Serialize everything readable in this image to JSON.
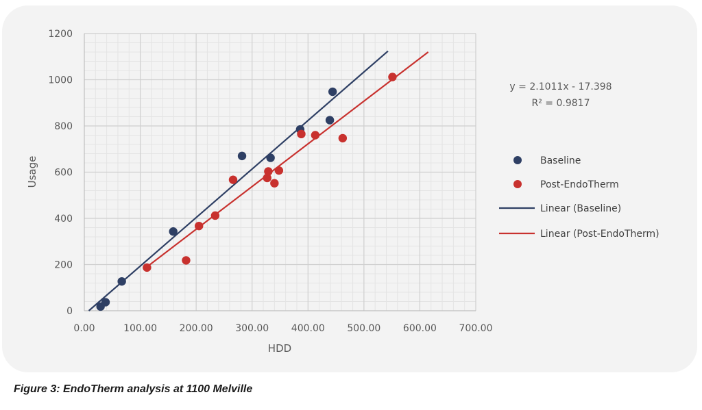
{
  "caption": "Figure 3: EndoTherm analysis at 1100 Melville",
  "chart_data": {
    "type": "scatter",
    "xlabel": "HDD",
    "ylabel": "Usage",
    "xlim": [
      0,
      700
    ],
    "ylim": [
      0,
      1200
    ],
    "x_ticks": [
      "0.00",
      "100.00",
      "200.00",
      "300.00",
      "400.00",
      "500.00",
      "600.00",
      "700.00"
    ],
    "y_ticks": [
      "0",
      "200",
      "400",
      "600",
      "800",
      "1000",
      "1200"
    ],
    "grid": true,
    "legend_position": "right",
    "equation": {
      "line1": "y = 2.1011x - 17.398",
      "line2": "R² = 0.9817"
    },
    "series": [
      {
        "name": "Baseline",
        "color": "#2e3f64",
        "points": [
          {
            "x": 29,
            "y": 18
          },
          {
            "x": 38,
            "y": 37
          },
          {
            "x": 67,
            "y": 127
          },
          {
            "x": 159,
            "y": 343
          },
          {
            "x": 282,
            "y": 670
          },
          {
            "x": 333,
            "y": 662
          },
          {
            "x": 386,
            "y": 785
          },
          {
            "x": 439,
            "y": 825
          },
          {
            "x": 444,
            "y": 948
          }
        ]
      },
      {
        "name": "Post-EndoTherm",
        "color": "#c8312e",
        "points": [
          {
            "x": 112,
            "y": 187
          },
          {
            "x": 182,
            "y": 218
          },
          {
            "x": 205,
            "y": 367
          },
          {
            "x": 234,
            "y": 412
          },
          {
            "x": 266,
            "y": 567
          },
          {
            "x": 327,
            "y": 575
          },
          {
            "x": 329,
            "y": 603
          },
          {
            "x": 340,
            "y": 552
          },
          {
            "x": 348,
            "y": 607
          },
          {
            "x": 388,
            "y": 765
          },
          {
            "x": 413,
            "y": 760
          },
          {
            "x": 462,
            "y": 747
          },
          {
            "x": 551,
            "y": 1012
          }
        ]
      }
    ],
    "trendlines": [
      {
        "name": "Linear (Baseline)",
        "color": "#2e3f64",
        "x_start": 8,
        "y_start": 0,
        "x_end": 543,
        "y_end": 1124
      },
      {
        "name": "Linear (Post-EndoTherm)",
        "color": "#c8312e",
        "x_start": 112,
        "y_start": 190,
        "x_end": 615,
        "y_end": 1120
      }
    ]
  }
}
